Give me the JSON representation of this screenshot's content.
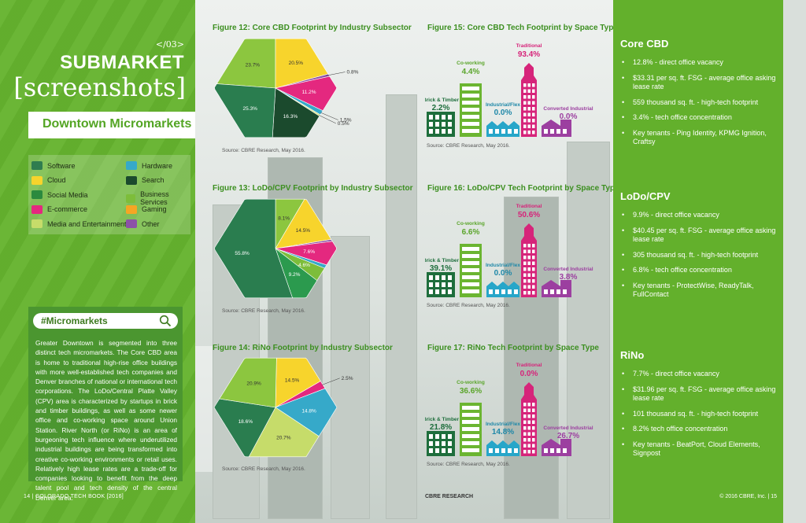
{
  "left": {
    "chapter": "</03>",
    "heading": "SUBMARKET",
    "subheading": "[screenshots]",
    "band_title": "Downtown Micromarkets",
    "legend": [
      {
        "label": "Software",
        "color": "#2f7d4f",
        "icon": "software-icon"
      },
      {
        "label": "Hardware",
        "color": "#36a9c9",
        "icon": "hardware-icon"
      },
      {
        "label": "Cloud",
        "color": "#f7d42c",
        "icon": "cloud-icon"
      },
      {
        "label": "Search",
        "color": "#1b4a2d",
        "icon": "search-icon"
      },
      {
        "label": "Social Media",
        "color": "#2b8a3e",
        "icon": "social-media-icon"
      },
      {
        "label": "Business Services",
        "color": "#7dbd3a",
        "icon": "business-services-icon"
      },
      {
        "label": "E-commerce",
        "color": "#e4287f",
        "icon": "ecommerce-icon"
      },
      {
        "label": "Gaming",
        "color": "#f5a623",
        "icon": "gaming-icon"
      },
      {
        "label": "Media and Entertainment",
        "color": "#c6dc6a",
        "icon": "media-icon"
      },
      {
        "label": "Other",
        "color": "#8c52a8",
        "icon": "other-icon"
      }
    ],
    "box_title": "#Micromarkets",
    "box_text": "Greater Downtown is segmented into three distinct tech micromarkets. The Core CBD area is home to traditional high-rise office buildings with more well-established tech companies and Denver branches of national or international tech corporations. The LoDo/Central Platte Valley (CPV) area is characterized by startups in brick and timber buildings, as well as some newer office and co-working space around Union Station. River North (or RiNo) is an area of burgeoning tech influence where underutilized industrial buildings are being transformed into creative co-working environments or retail uses. Relatively high lease rates are a trade-off for companies looking to benefit from the deep talent pool and tech density of the central Denver area.",
    "footer": "14  |  COLORADO TECH BOOK [2016]"
  },
  "center_footer": "CBRE RESEARCH",
  "chart_data": [
    {
      "type": "pie",
      "title": "Figure 12: Core CBD Footprint by Industry Subsector",
      "source": "Source: CBRE Research, May 2016.",
      "slices": [
        {
          "label": "23.7%",
          "value": 23.7,
          "color": "#8cc63f"
        },
        {
          "label": "20.5%",
          "value": 20.5,
          "color": "#f7d42c"
        },
        {
          "label": "0.8%",
          "value": 0.8,
          "color": "#8c52a8"
        },
        {
          "label": "11.2%",
          "value": 11.2,
          "color": "#e4287f"
        },
        {
          "label": "1.5%",
          "value": 1.5,
          "color": "#36a9c9"
        },
        {
          "label": "0.5%",
          "value": 0.5,
          "color": "#d7e37b"
        },
        {
          "label": "16.3%",
          "value": 16.3,
          "color": "#1b4a2d"
        },
        {
          "label": "25.3%",
          "value": 25.3,
          "color": "#2a7d4f"
        }
      ]
    },
    {
      "type": "pie",
      "title": "Figure 13: LoDo/CPV Footprint by Industry Subsector",
      "source": "Source: CBRE Research, May 2016.",
      "slices": [
        {
          "label": "8.1%",
          "value": 8.1,
          "color": "#8cc63f"
        },
        {
          "label": "14.5%",
          "value": 14.5,
          "color": "#f7d42c"
        },
        {
          "label": "",
          "value": 0.6,
          "color": "#8c52a8"
        },
        {
          "label": "7.6%",
          "value": 7.6,
          "color": "#e4287f"
        },
        {
          "label": "",
          "value": 1.2,
          "color": "#36a9c9"
        },
        {
          "label": "4.6%",
          "value": 4.6,
          "color": "#7dbd3a"
        },
        {
          "label": "9.2%",
          "value": 9.2,
          "color": "#2b9a4e"
        },
        {
          "label": "55.8%",
          "value": 55.8,
          "color": "#2a7d4f"
        }
      ]
    },
    {
      "type": "pie",
      "title": "Figure 14: RiNo Footprint by Industry Subsector",
      "source": "Source: CBRE Research, May 2016.",
      "slices": [
        {
          "label": "14.5%",
          "value": 14.5,
          "color": "#f7d42c"
        },
        {
          "label": "2.5%",
          "value": 2.5,
          "color": "#e4287f"
        },
        {
          "label": "14.8%",
          "value": 14.8,
          "color": "#36a9c9"
        },
        {
          "label": "20.7%",
          "value": 20.7,
          "color": "#c6dc6a"
        },
        {
          "label": "18.6%",
          "value": 18.6,
          "color": "#2a7d4f"
        },
        {
          "label": "20.9%",
          "value": 20.9,
          "color": "#8cc63f"
        }
      ]
    }
  ],
  "space_charts": [
    {
      "title": "Figure 15: Core CBD Tech Footprint by Space Type",
      "source": "Source: CBRE Research, May 2016.",
      "items": [
        {
          "name": "Brick & Timber",
          "value": "2.2%"
        },
        {
          "name": "Co-working",
          "value": "4.4%"
        },
        {
          "name": "Industrial/Flex",
          "value": "0.0%"
        },
        {
          "name": "Traditional",
          "value": "93.4%"
        },
        {
          "name": "Converted Industrial",
          "value": "0.0%"
        }
      ]
    },
    {
      "title": "Figure 16: LoDo/CPV Tech Footprint by Space Type",
      "source": "Source: CBRE Research, May 2016.",
      "items": [
        {
          "name": "Brick & Timber",
          "value": "39.1%"
        },
        {
          "name": "Co-working",
          "value": "6.6%"
        },
        {
          "name": "Industrial/Flex",
          "value": "0.0%"
        },
        {
          "name": "Traditional",
          "value": "50.6%"
        },
        {
          "name": "Converted Industrial",
          "value": "3.8%"
        }
      ]
    },
    {
      "title": "Figure 17: RiNo Tech Footprint by Space Type",
      "source": "Source: CBRE Research, May 2016.",
      "items": [
        {
          "name": "Brick & Timber",
          "value": "21.8%"
        },
        {
          "name": "Co-working",
          "value": "36.6%"
        },
        {
          "name": "Industrial/Flex",
          "value": "14.8%"
        },
        {
          "name": "Traditional",
          "value": "0.0%"
        },
        {
          "name": "Converted Industrial",
          "value": "26.7%"
        }
      ]
    }
  ],
  "right": {
    "sections": [
      {
        "title": "Core CBD",
        "bullets": [
          "12.8% - direct office vacancy",
          "$33.31 per sq. ft. FSG - average office asking lease rate",
          "559 thousand sq. ft. - high-tech footprint",
          "3.4% - tech office concentration",
          "Key tenants - Ping Identity, KPMG Ignition, Craftsy"
        ]
      },
      {
        "title": "LoDo/CPV",
        "bullets": [
          "9.9% - direct office vacancy",
          "$40.45 per sq. ft. FSG - average office asking lease rate",
          "305 thousand sq. ft. - high-tech footprint",
          "6.8% - tech office concentration",
          "Key tenants - ProtectWise, ReadyTalk, FullContact"
        ]
      },
      {
        "title": "RiNo",
        "bullets": [
          "7.7% - direct office vacancy",
          "$31.96 per sq. ft. FSG - average office asking lease rate",
          "101 thousand sq. ft. - high-tech footprint",
          "8.2% tech office concentration",
          "Key tenants - BeatPort, Cloud Elements, Signpost"
        ]
      }
    ],
    "footer": "© 2016 CBRE, Inc.  |  15"
  }
}
